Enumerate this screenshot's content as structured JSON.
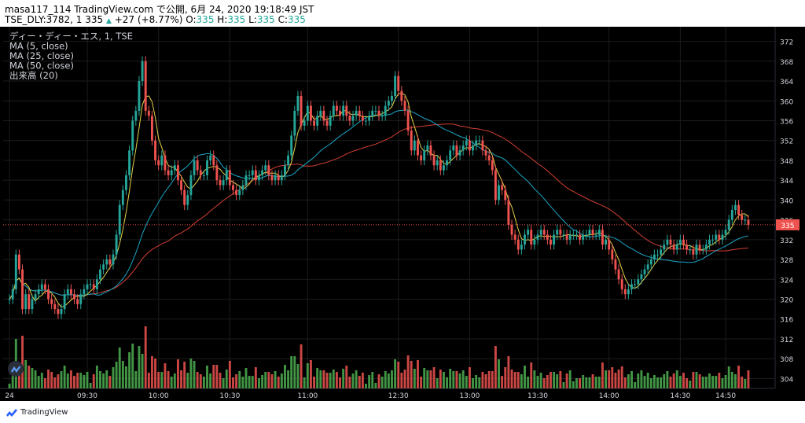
{
  "header": {
    "line1_prefix": "masa117_114 TradingView.com で公開, 6月 24, 2020 19:18:49 JST",
    "symbol_info": "TSE_DLY:3782, 1 335",
    "change_arrow": "▲",
    "change_text": "+27 (+8.77%)",
    "o_label": "O:",
    "o_value": "335",
    "h_label": "H:",
    "h_value": "335",
    "l_label": "L:",
    "l_value": "335",
    "c_label": "C:",
    "c_value": "335"
  },
  "legend": [
    "ディー・ディー・エス, 1, TSE",
    "MA (5, close)",
    "MA (25, close)",
    "MA (50, close)",
    "出来高 (20)"
  ],
  "footer": {
    "brand": "TradingView"
  },
  "colors": {
    "background": "#000000",
    "grid": "#1c1c1c",
    "up": "#26a69a",
    "down": "#ef5350",
    "ma5": "#e5d14a",
    "ma25": "#1aa7c7",
    "ma50": "#d43f33",
    "vol_up": "#4caf50",
    "vol_down": "#ef5350",
    "price_line": "#ef5350",
    "axis_text": "#d1d4dc"
  },
  "chart_data": {
    "type": "candlestick",
    "title": "ディー・ディー・エス, 1, TSE",
    "y_ticks": [
      372,
      368,
      364,
      360,
      356,
      352,
      348,
      344,
      340,
      336,
      332,
      328,
      324,
      320,
      316,
      312,
      308,
      304
    ],
    "ylim": [
      302,
      374
    ],
    "x_ticks": [
      "24",
      "09:30",
      "10:00",
      "10:30",
      "11:00",
      "12:30",
      "13:00",
      "13:30",
      "14:00",
      "14:30",
      "14:50"
    ],
    "last_price": 335,
    "ma_periods": [
      5,
      25,
      50
    ],
    "close": [
      320,
      322,
      329,
      326,
      318,
      321,
      318,
      320,
      321,
      322,
      323,
      322,
      320,
      319,
      318,
      317,
      318,
      321,
      322,
      321,
      320,
      319,
      321,
      322,
      323,
      323,
      322,
      324,
      326,
      327,
      328,
      327,
      329,
      333,
      339,
      342,
      345,
      350,
      356,
      358,
      364,
      368,
      358,
      357,
      352,
      348,
      347,
      349,
      346,
      345,
      346,
      347,
      344,
      342,
      339,
      341,
      345,
      348,
      346,
      345,
      345,
      348,
      349,
      347,
      344,
      343,
      344,
      346,
      343,
      342,
      341,
      342,
      343,
      345,
      345,
      346,
      344,
      345,
      346,
      347,
      345,
      344,
      345,
      344,
      345,
      347,
      349,
      353,
      358,
      361,
      355,
      356,
      359,
      356,
      355,
      357,
      358,
      356,
      355,
      357,
      359,
      358,
      357,
      359,
      357,
      356,
      357,
      358,
      357,
      356,
      356,
      357,
      358,
      358,
      357,
      357,
      359,
      360,
      361,
      365,
      362,
      360,
      358,
      354,
      350,
      352,
      349,
      348,
      350,
      351,
      349,
      347,
      348,
      346,
      347,
      348,
      350,
      351,
      349,
      350,
      351,
      352,
      350,
      351,
      352,
      352,
      350,
      349,
      348,
      346,
      340,
      343,
      342,
      340,
      335,
      333,
      332,
      330,
      331,
      333,
      334,
      331,
      332,
      333,
      334,
      333,
      332,
      331,
      333,
      334,
      333,
      333,
      332,
      333,
      333,
      333,
      332,
      333,
      333,
      334,
      333,
      333,
      334,
      331,
      332,
      330,
      328,
      326,
      324,
      322,
      321,
      322,
      323,
      323,
      324,
      325,
      326,
      327,
      328,
      329,
      329,
      330,
      331,
      332,
      331,
      330,
      331,
      332,
      331,
      330,
      330,
      329,
      331,
      330,
      330,
      331,
      332,
      332,
      333,
      332,
      333,
      334,
      336,
      338,
      339,
      337,
      336,
      336,
      335
    ]
  }
}
